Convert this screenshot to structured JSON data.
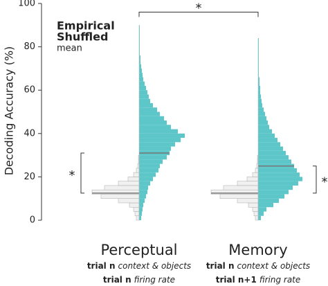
{
  "chart_data": {
    "type": "split_histogram",
    "ylabel": "Decoding Accuracy (%)",
    "ylim": [
      0,
      100
    ],
    "yticks": [
      0,
      20,
      40,
      60,
      80,
      100
    ],
    "xlim": [
      0,
      70
    ],
    "legend": [
      {
        "name": "Empirical",
        "color": "#5cc6c8"
      },
      {
        "name": "Shuffled",
        "color": "#dcdcdc"
      },
      {
        "name": "mean",
        "color": "#777777"
      }
    ],
    "groups": [
      {
        "name": "Perceptual",
        "lines": [
          {
            "bold": "trial n",
            "italic": "context & objects"
          },
          {
            "bold": "trial n",
            "italic": "firing rate"
          }
        ],
        "series": [
          {
            "side": "right",
            "color": "#5cc6c8",
            "mean": 31,
            "bins": [
              0,
              2,
              4,
              6,
              8,
              10,
              12,
              14,
              16,
              18,
              20,
              22,
              24,
              26,
              28,
              30,
              32,
              34,
              36,
              38,
              40,
              42,
              44,
              46,
              48,
              50,
              52,
              54,
              56,
              58,
              60,
              62,
              64,
              66,
              68,
              70,
              72,
              74,
              76,
              78,
              80,
              82,
              84,
              86,
              88,
              90
            ],
            "counts": [
              3,
              4,
              5,
              6,
              8,
              10,
              12,
              13,
              16,
              20,
              24,
              28,
              30,
              34,
              40,
              44,
              46,
              52,
              60,
              66,
              56,
              46,
              40,
              36,
              30,
              26,
              20,
              16,
              14,
              12,
              10,
              8,
              6,
              5,
              4,
              3,
              2,
              2,
              1,
              1,
              1,
              1,
              1,
              1,
              1
            ]
          },
          {
            "side": "left",
            "color": "#f0f0f0",
            "mean": 12.5,
            "bins": [
              0,
              2,
              4,
              6,
              8,
              10,
              12,
              14,
              16,
              18,
              20,
              22,
              24,
              26,
              28,
              30
            ],
            "counts": [
              4,
              6,
              8,
              14,
              30,
              55,
              68,
              50,
              30,
              16,
              8,
              4,
              2,
              1,
              1
            ]
          }
        ],
        "bracket": {
          "label": "*",
          "y": [
            12.5,
            31
          ],
          "side": "left"
        }
      },
      {
        "name": "Memory",
        "lines": [
          {
            "bold": "trial n",
            "italic": "context & objects"
          },
          {
            "bold": "trial n+1",
            "italic": "firing rate"
          }
        ],
        "series": [
          {
            "side": "right",
            "color": "#5cc6c8",
            "mean": 25,
            "bins": [
              0,
              2,
              4,
              6,
              8,
              10,
              12,
              14,
              16,
              18,
              20,
              22,
              24,
              26,
              28,
              30,
              32,
              34,
              36,
              38,
              40,
              42,
              44,
              46,
              48,
              50,
              52,
              54,
              56,
              58,
              60,
              62,
              64,
              66,
              68,
              70,
              72,
              74,
              76,
              78,
              80,
              82,
              84
            ],
            "counts": [
              4,
              8,
              12,
              22,
              30,
              38,
              44,
              50,
              58,
              64,
              60,
              56,
              52,
              48,
              44,
              40,
              36,
              32,
              28,
              24,
              20,
              16,
              14,
              12,
              10,
              8,
              6,
              5,
              4,
              3,
              3,
              2,
              2,
              1,
              1,
              1,
              1,
              1,
              1,
              1,
              1,
              1
            ]
          },
          {
            "side": "left",
            "color": "#f0f0f0",
            "mean": 12.5,
            "bins": [
              0,
              2,
              4,
              6,
              8,
              10,
              12,
              14,
              16,
              18,
              20,
              22,
              24,
              26,
              28,
              30
            ],
            "counts": [
              4,
              6,
              8,
              14,
              30,
              55,
              68,
              50,
              30,
              16,
              8,
              4,
              2,
              1,
              1
            ]
          }
        ],
        "bracket": {
          "label": "*",
          "y": [
            12.5,
            25
          ],
          "side": "right"
        }
      }
    ],
    "top_bracket": {
      "label": "*",
      "y": 96
    }
  }
}
